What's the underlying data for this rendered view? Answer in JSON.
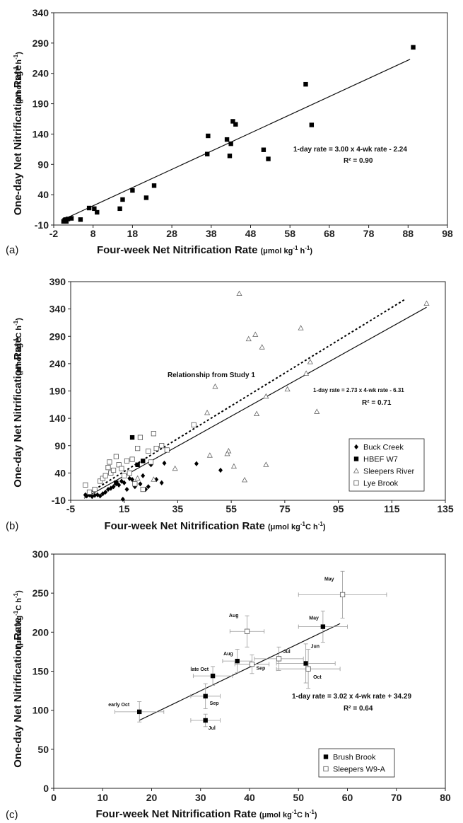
{
  "chart_data": [
    {
      "type": "scatter",
      "panel_label": "(a)",
      "xlabel": "Four-week Net Nitrification Rate",
      "xunit": [
        "(μmol kg",
        "-1",
        " h",
        "-1",
        ")"
      ],
      "ylabel": "One-day Net Nitrification Rate",
      "yunit": [
        "(μmol kg",
        "-1",
        " h",
        "-1",
        ")"
      ],
      "xlim": [
        -2,
        98
      ],
      "ylim": [
        -10,
        340
      ],
      "xticks": [
        -2,
        8,
        18,
        28,
        38,
        48,
        58,
        68,
        78,
        88,
        98
      ],
      "yticks": [
        -10,
        40,
        90,
        140,
        190,
        240,
        290,
        340
      ],
      "grid": false,
      "points": [
        [
          0.5,
          -4
        ],
        [
          0.8,
          -2
        ],
        [
          1.0,
          -1
        ],
        [
          1.2,
          -4
        ],
        [
          1.6,
          0
        ],
        [
          2.5,
          1
        ],
        [
          4.8,
          -1
        ],
        [
          7.0,
          18
        ],
        [
          8.3,
          17
        ],
        [
          9.0,
          11
        ],
        [
          14.8,
          17
        ],
        [
          15.5,
          32
        ],
        [
          18.0,
          47
        ],
        [
          21.5,
          35
        ],
        [
          23.5,
          55
        ],
        [
          37.0,
          107
        ],
        [
          37.2,
          137
        ],
        [
          42.0,
          131
        ],
        [
          42.7,
          104
        ],
        [
          43.0,
          124
        ],
        [
          43.5,
          161
        ],
        [
          44.2,
          156
        ],
        [
          51.3,
          114
        ],
        [
          52.5,
          99
        ],
        [
          62.0,
          222
        ],
        [
          63.5,
          155
        ],
        [
          89.3,
          283
        ]
      ],
      "fit": {
        "slope": 3.0,
        "intercept": -2.24,
        "x_range": [
          0.5,
          88.5
        ]
      },
      "annotations": [
        "1-day rate = 3.00 x 4-wk rate - 2.24",
        "R² = 0.90"
      ]
    },
    {
      "type": "scatter",
      "panel_label": "(b)",
      "xlabel": "Four-week Net Nitrification Rate",
      "xunit": [
        "(μmol kg",
        "-1",
        "C h",
        "-1",
        ")"
      ],
      "ylabel": "One-day Net Nitrification Rate",
      "yunit": [
        "(μmol kg",
        "-1",
        "C h",
        "-1",
        ")"
      ],
      "xlim": [
        -5,
        135
      ],
      "ylim": [
        -10,
        390
      ],
      "xticks": [
        -5,
        15,
        35,
        55,
        75,
        95,
        115,
        135
      ],
      "yticks": [
        -10,
        40,
        90,
        140,
        190,
        240,
        290,
        340,
        390
      ],
      "grid": false,
      "series": [
        {
          "name": "Buck Creek",
          "marker": "diamond-filled",
          "points": [
            [
              0.5,
              0
            ],
            [
              1.0,
              -2
            ],
            [
              2.0,
              0
            ],
            [
              3.0,
              -3
            ],
            [
              4.0,
              -1
            ],
            [
              5.0,
              0
            ],
            [
              6.0,
              -2
            ],
            [
              7.0,
              2
            ],
            [
              8.0,
              5
            ],
            [
              9.0,
              10
            ],
            [
              10.0,
              12
            ],
            [
              11.0,
              15
            ],
            [
              12.0,
              20
            ],
            [
              13.0,
              18
            ],
            [
              14.0,
              25
            ],
            [
              14.5,
              -8
            ],
            [
              15.0,
              22
            ],
            [
              16.0,
              10
            ],
            [
              17.0,
              30
            ],
            [
              18.0,
              28
            ],
            [
              19.0,
              15
            ],
            [
              21.0,
              20
            ],
            [
              22.0,
              35
            ],
            [
              23.0,
              10
            ],
            [
              25.0,
              55
            ],
            [
              27.0,
              28
            ],
            [
              29.0,
              22
            ],
            [
              30.0,
              58
            ],
            [
              24.0,
              15
            ],
            [
              42.0,
              57
            ],
            [
              51.0,
              45
            ]
          ]
        },
        {
          "name": "HBEF W7",
          "marker": "square-filled",
          "points": [
            [
              18.0,
              105
            ],
            [
              20.0,
              55
            ],
            [
              22.0,
              62
            ],
            [
              12.0,
              22
            ]
          ]
        },
        {
          "name": "Sleepers River",
          "marker": "triangle-open",
          "points": [
            [
              20.0,
              30
            ],
            [
              26.0,
              28
            ],
            [
              34.0,
              48
            ],
            [
              46.0,
              150
            ],
            [
              47.0,
              72
            ],
            [
              49.0,
              198
            ],
            [
              54.0,
              80
            ],
            [
              53.5,
              75
            ],
            [
              56.0,
              52
            ],
            [
              58.0,
              368
            ],
            [
              60.0,
              27
            ],
            [
              61.5,
              285
            ],
            [
              64.0,
              293
            ],
            [
              64.5,
              148
            ],
            [
              66.5,
              270
            ],
            [
              68.0,
              55
            ],
            [
              68.0,
              180
            ],
            [
              76.0,
              193
            ],
            [
              81.0,
              305
            ],
            [
              83.0,
              222
            ],
            [
              84.5,
              243
            ],
            [
              87.0,
              152
            ],
            [
              128.0,
              350
            ]
          ]
        },
        {
          "name": "Lye Brook",
          "marker": "square-open",
          "points": [
            [
              0.5,
              18
            ],
            [
              2.0,
              5
            ],
            [
              4.0,
              10
            ],
            [
              6.0,
              25
            ],
            [
              7.0,
              30
            ],
            [
              8.0,
              35
            ],
            [
              9.0,
              50
            ],
            [
              9.5,
              60
            ],
            [
              10.0,
              40
            ],
            [
              11.0,
              45
            ],
            [
              12.0,
              70
            ],
            [
              13.0,
              55
            ],
            [
              14.0,
              48
            ],
            [
              15.0,
              35
            ],
            [
              16.0,
              62
            ],
            [
              17.0,
              40
            ],
            [
              18.0,
              65
            ],
            [
              19.0,
              20
            ],
            [
              20.0,
              85
            ],
            [
              21.0,
              105
            ],
            [
              22.0,
              10
            ],
            [
              24.0,
              80
            ],
            [
              25.0,
              60
            ],
            [
              26.0,
              112
            ],
            [
              27.0,
              85
            ],
            [
              29.0,
              90
            ],
            [
              31.0,
              82
            ],
            [
              41.0,
              128
            ]
          ]
        }
      ],
      "fit": {
        "slope": 2.73,
        "intercept": -6.31,
        "x_range": [
          0.0,
          128.0
        ]
      },
      "reference_line": {
        "label": "Relationship from Study 1",
        "slope": 3.0,
        "intercept": -2.24,
        "x_range": [
          0.0,
          120.0
        ]
      },
      "annotations": [
        "Relationship from Study 1",
        "1-day rate = 2.73 x 4-wk rate - 6.31",
        "R² = 0.71"
      ],
      "legend": "bottom-right"
    },
    {
      "type": "scatter",
      "panel_label": "(c)",
      "xlabel": "Four-week Net Nitrification Rate",
      "xunit": [
        "(μmol kg",
        "-1",
        "C h",
        "-1",
        ")"
      ],
      "ylabel": "One-day Net Nitrification Rate",
      "yunit": [
        "(μmol kg",
        "-1",
        "C h",
        "-1",
        ")"
      ],
      "xlim": [
        0,
        80
      ],
      "ylim": [
        0,
        300
      ],
      "xticks": [
        0,
        10,
        20,
        30,
        40,
        50,
        60,
        70,
        80
      ],
      "yticks": [
        0,
        50,
        100,
        150,
        200,
        250,
        300
      ],
      "grid": false,
      "series": [
        {
          "name": "Brush Brook",
          "marker": "square-filled",
          "points": [
            {
              "label": "early Oct",
              "x": 17.5,
              "y": 98,
              "xerr": 5.0,
              "yerr": 13
            },
            {
              "label": "late Oct",
              "x": 32.5,
              "y": 144,
              "xerr": 4.0,
              "yerr": 12
            },
            {
              "label": "Sep",
              "x": 31.0,
              "y": 118,
              "xerr": 3.0,
              "yerr": 16
            },
            {
              "label": "Jul",
              "x": 31.0,
              "y": 87,
              "xerr": 3.0,
              "yerr": 8
            },
            {
              "label": "Aug",
              "x": 37.5,
              "y": 163,
              "xerr": 3.0,
              "yerr": 15
            },
            {
              "label": "Jun",
              "x": 51.5,
              "y": 160,
              "xerr": 6.0,
              "yerr": 25
            },
            {
              "label": "May",
              "x": 55.0,
              "y": 207,
              "xerr": 5.0,
              "yerr": 20
            }
          ]
        },
        {
          "name": "Sleepers W9-A",
          "marker": "square-open",
          "points": [
            {
              "label": "Aug",
              "x": 39.5,
              "y": 201,
              "xerr": 3.5,
              "yerr": 20
            },
            {
              "label": "Sep",
              "x": 40.5,
              "y": 159,
              "xerr": 3.5,
              "yerr": 12
            },
            {
              "label": "Jul",
              "x": 46.0,
              "y": 166,
              "xerr": 5.0,
              "yerr": 15
            },
            {
              "label": "Oct",
              "x": 52.0,
              "y": 153,
              "xerr": 6.5,
              "yerr": 25
            },
            {
              "label": "May",
              "x": 59.0,
              "y": 248,
              "xerr": 9.0,
              "yerr": 30
            }
          ]
        }
      ],
      "fit": {
        "slope": 3.02,
        "intercept": 34.29,
        "x_range": [
          17.5,
          58.5
        ]
      },
      "annotations": [
        "1-day rate = 3.02 x 4-wk rate + 34.29",
        "R² = 0.64"
      ],
      "legend": "bottom-right"
    }
  ]
}
